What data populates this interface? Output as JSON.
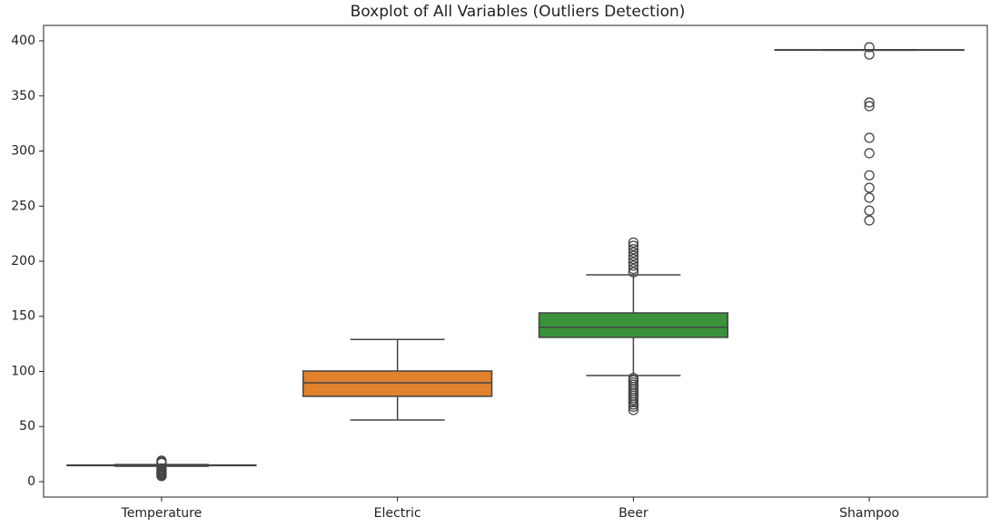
{
  "chart_data": {
    "type": "boxplot",
    "title": "Boxplot of All Variables (Outliers Detection)",
    "categories": [
      "Temperature",
      "Electric",
      "Beer",
      "Shampoo"
    ],
    "colors": [
      "#3274a1",
      "#e1812c",
      "#3a923a",
      "#c03d3e"
    ],
    "boxes": [
      {
        "whislo": 14.0,
        "q1": 14.5,
        "med": 14.8,
        "q3": 15.1,
        "whishi": 15.5,
        "fliers": [
          5,
          6,
          7,
          8,
          9,
          10,
          11,
          12,
          17,
          18,
          19
        ]
      },
      {
        "whislo": 56,
        "q1": 77.4,
        "med": 89.7,
        "q3": 100.4,
        "whishi": 129,
        "fliers": []
      },
      {
        "whislo": 96.3,
        "q1": 130.9,
        "med": 140,
        "q3": 153.1,
        "whishi": 187.7,
        "fliers": [
          65,
          68,
          70,
          72,
          74,
          76,
          78,
          80,
          82,
          84,
          86,
          88,
          90,
          92,
          94,
          190,
          193,
          196,
          199,
          202,
          205,
          208,
          211,
          214,
          217
        ]
      },
      {
        "whislo": 391.5,
        "q1": 391.5,
        "med": 391.7,
        "q3": 391.9,
        "whishi": 391.9,
        "fliers": [
          394.2,
          387.6,
          344,
          340.7,
          312,
          298,
          278,
          266.7,
          257.6,
          246,
          237
        ]
      }
    ],
    "ylim": [
      -14,
      414
    ],
    "yticks": [
      0,
      50,
      100,
      150,
      200,
      250,
      300,
      350,
      400
    ]
  }
}
